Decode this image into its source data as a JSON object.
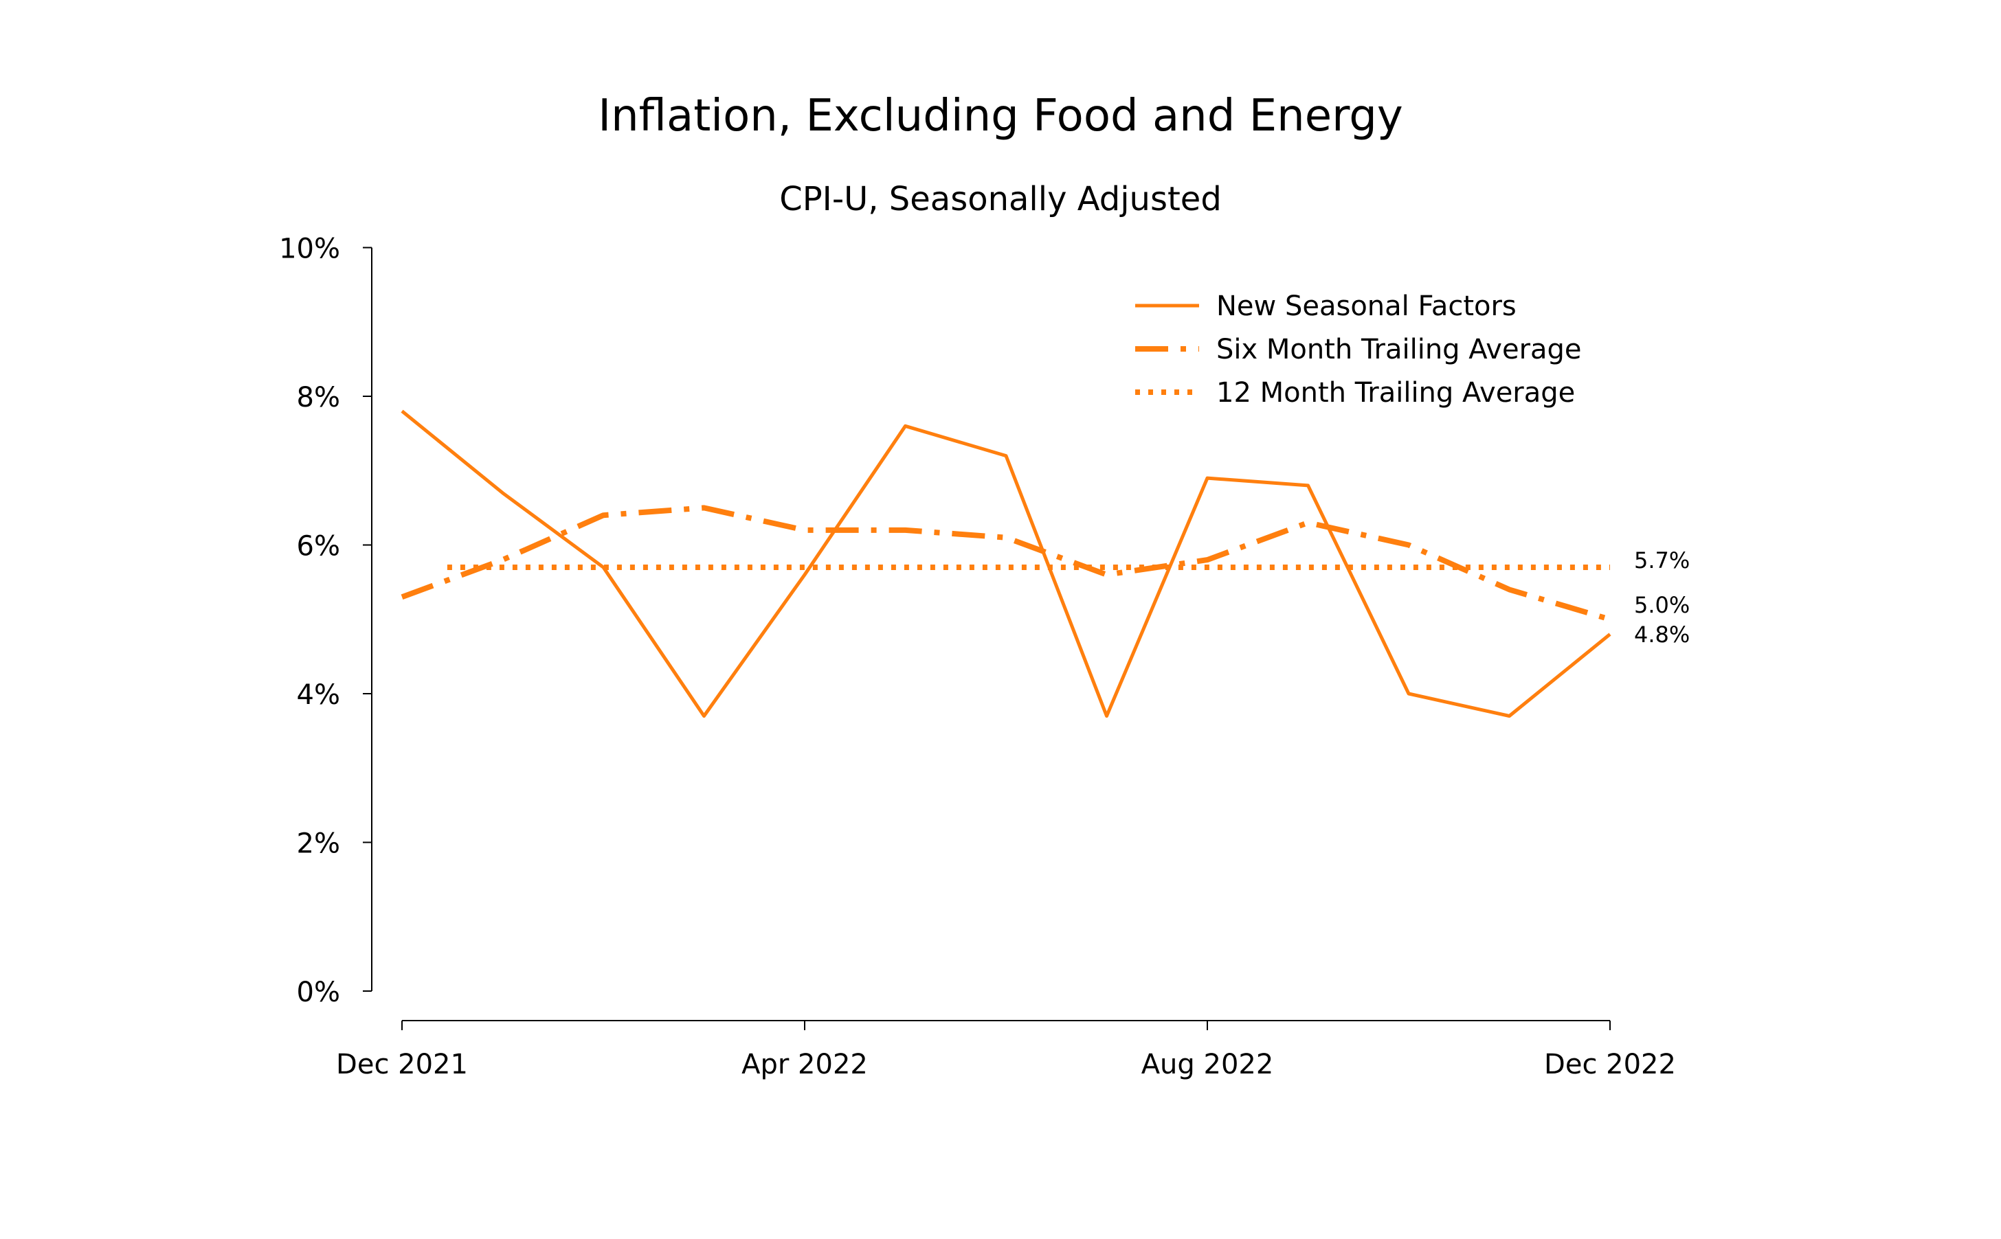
{
  "chart_data": {
    "type": "line",
    "title": "Inflation, Excluding Food and Energy",
    "subtitle": "CPI-U, Seasonally Adjusted",
    "x": [
      "2021-12",
      "2022-01",
      "2022-02",
      "2022-03",
      "2022-04",
      "2022-05",
      "2022-06",
      "2022-07",
      "2022-08",
      "2022-09",
      "2022-10",
      "2022-11",
      "2022-12"
    ],
    "x_ticks": [
      {
        "x": "2021-12",
        "label": "Dec 2021"
      },
      {
        "x": "2022-04",
        "label": "Apr 2022"
      },
      {
        "x": "2022-08",
        "label": "Aug 2022"
      },
      {
        "x": "2022-12",
        "label": "Dec 2022"
      }
    ],
    "y_ticks": [
      {
        "value": 0,
        "label": "0%"
      },
      {
        "value": 2,
        "label": "2%"
      },
      {
        "value": 4,
        "label": "4%"
      },
      {
        "value": 6,
        "label": "6%"
      },
      {
        "value": 8,
        "label": "8%"
      },
      {
        "value": 10,
        "label": "10%"
      }
    ],
    "ylim": [
      0,
      10
    ],
    "grid": false,
    "legend_position": "top-right",
    "series": [
      {
        "name": "New Seasonal Factors",
        "style": "solid",
        "color": "#ff7f0e",
        "values": [
          7.8,
          6.7,
          5.7,
          3.7,
          5.6,
          7.6,
          7.2,
          3.7,
          6.9,
          6.8,
          4.0,
          3.7,
          4.8
        ],
        "end_label": "4.8%"
      },
      {
        "name": "Six Month Trailing Average",
        "style": "dashdot",
        "color": "#ff7f0e",
        "values": [
          5.3,
          5.8,
          6.4,
          6.5,
          6.2,
          6.2,
          6.1,
          5.6,
          5.8,
          6.3,
          6.0,
          5.4,
          5.0
        ],
        "end_label": "5.0%"
      },
      {
        "name": "12 Month Trailing Average",
        "style": "dotted",
        "color": "#ff7f0e",
        "x_start": "2022-01",
        "values": [
          null,
          5.7,
          5.7,
          5.7,
          5.7,
          5.7,
          5.7,
          5.7,
          5.7,
          5.7,
          5.7,
          5.7,
          5.7
        ],
        "end_label": "5.7%"
      }
    ]
  }
}
